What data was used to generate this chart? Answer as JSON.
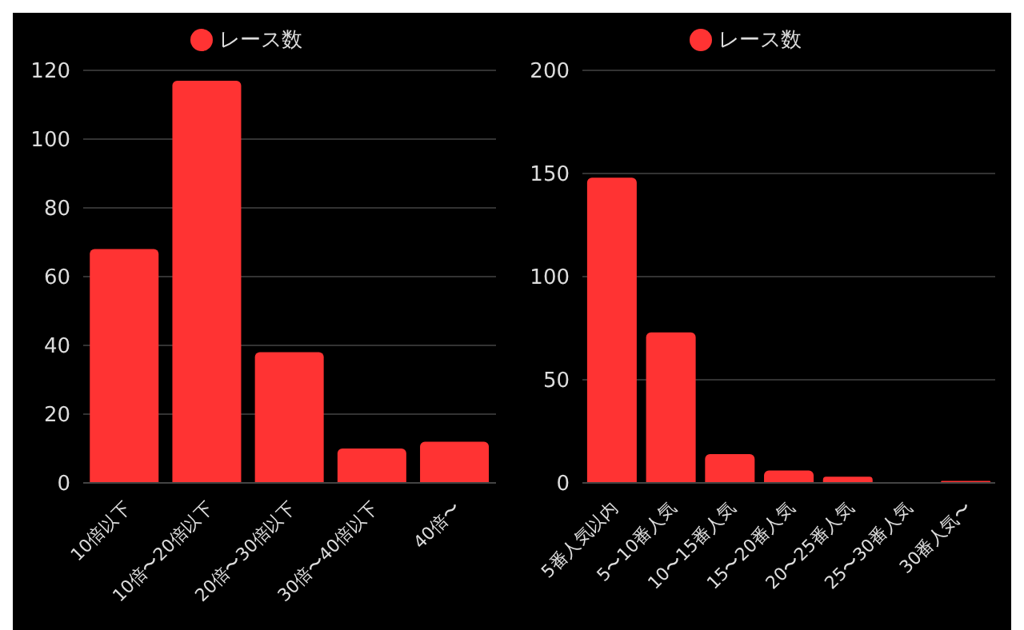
{
  "chart_data": [
    {
      "type": "bar",
      "categories": [
        "10倍以下",
        "10倍〜20倍以下",
        "20倍〜30倍以下",
        "30倍〜40倍以下",
        "40倍〜"
      ],
      "series": [
        {
          "name": "レース数",
          "color": "#ff3333",
          "values": [
            68,
            117,
            38,
            10,
            12
          ]
        }
      ],
      "ylim": [
        0,
        120
      ],
      "yticks": [
        0,
        20,
        40,
        60,
        80,
        100,
        120
      ],
      "grid": "y",
      "legend": "top"
    },
    {
      "type": "bar",
      "categories": [
        "5番人気以内",
        "5〜10番人気",
        "10〜15番人気",
        "15〜20番人気",
        "20〜25番人気",
        "25〜30番人気",
        "30番人気〜"
      ],
      "series": [
        {
          "name": "レース数",
          "color": "#ff3333",
          "values": [
            148,
            73,
            14,
            6,
            3,
            0,
            1
          ]
        }
      ],
      "ylim": [
        0,
        200
      ],
      "yticks": [
        0,
        50,
        100,
        150,
        200
      ],
      "grid": "y",
      "legend": "top"
    }
  ]
}
